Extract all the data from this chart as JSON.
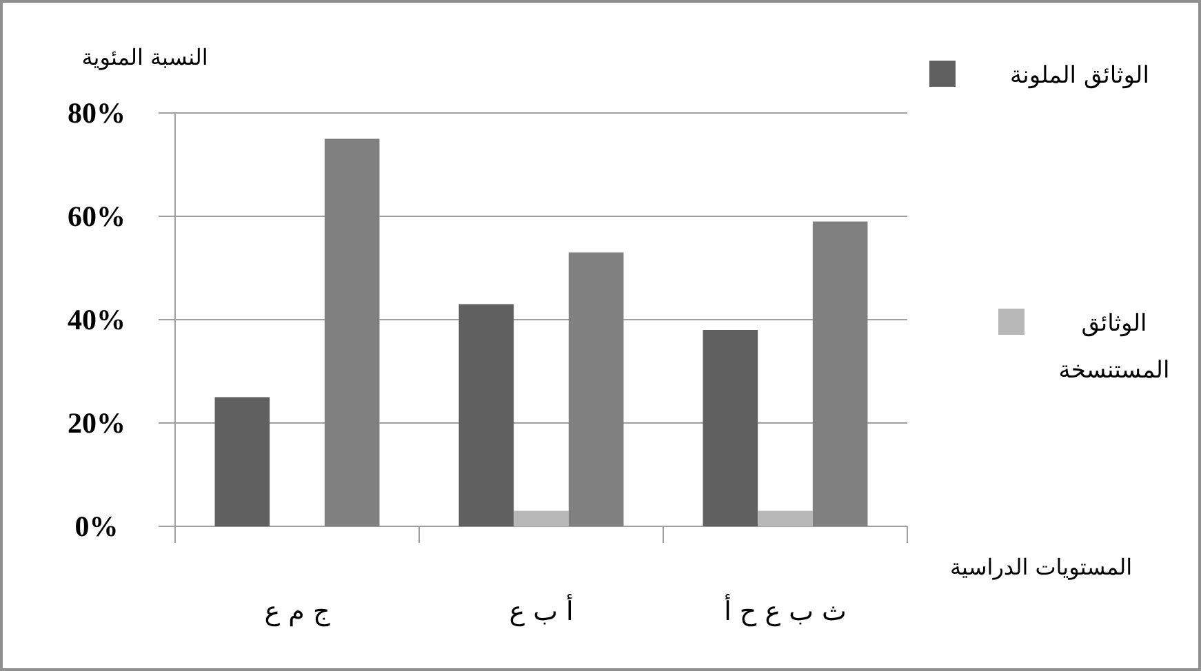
{
  "chart_data": {
    "type": "bar",
    "ylabel": "النسبة المئوية",
    "xlabel": "المستويات الدراسية",
    "categories": [
      "ج م ع",
      "أ ب ع",
      "ث ب ع ح أ"
    ],
    "series": [
      {
        "name": "الوثائق الملونة",
        "color": "#606060",
        "values": [
          25,
          43,
          38
        ]
      },
      {
        "name": "الوثائق المستنسخة",
        "color": "#b8b8b8",
        "values": [
          0,
          3,
          3
        ]
      },
      {
        "color": "#808080",
        "values": [
          75,
          53,
          59
        ]
      }
    ],
    "ylim": [
      0,
      80
    ],
    "yticks": [
      {
        "value": 0,
        "label": "0%"
      },
      {
        "value": 20,
        "label": "20%"
      },
      {
        "value": 40,
        "label": "40%"
      },
      {
        "value": 60,
        "label": "60%"
      },
      {
        "value": 80,
        "label": "80%"
      }
    ],
    "grid": "y",
    "legend": "right"
  }
}
